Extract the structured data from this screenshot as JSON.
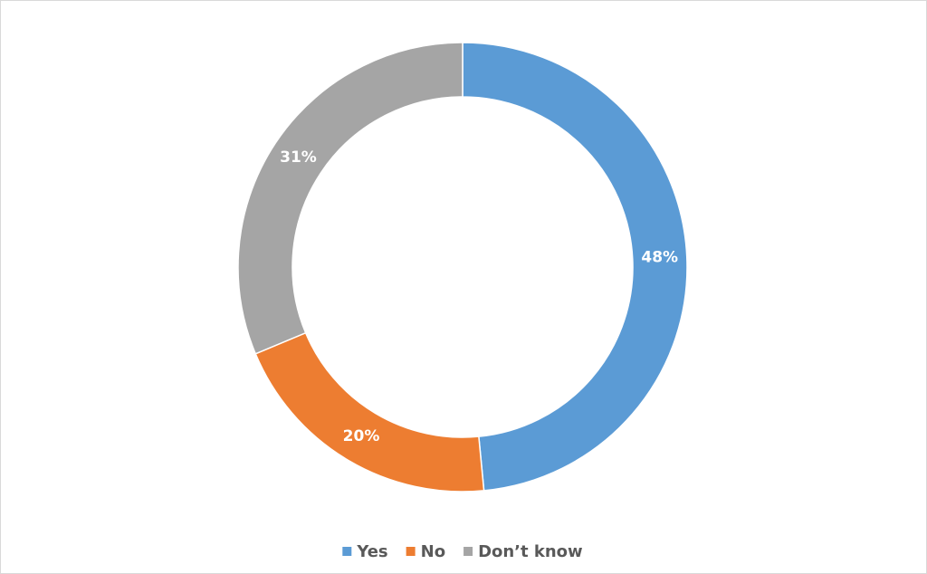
{
  "chart_data": {
    "type": "donut",
    "categories": [
      "Yes",
      "No",
      "Don’t know"
    ],
    "values": [
      48,
      20,
      31
    ],
    "value_labels": [
      "48%",
      "20%",
      "31%"
    ],
    "colors": [
      "#5b9bd5",
      "#ed7d31",
      "#a5a5a5"
    ],
    "legend": "bottom"
  }
}
